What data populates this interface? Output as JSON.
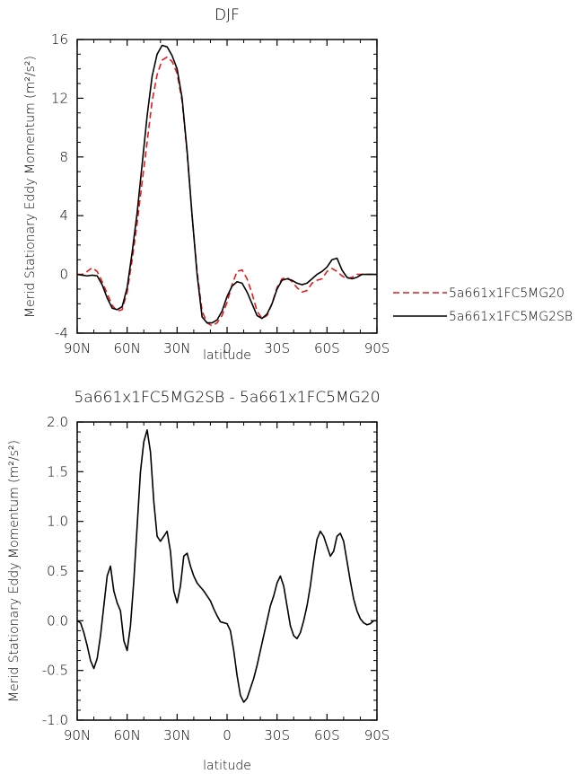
{
  "chart_data": [
    {
      "type": "line",
      "title": "DJF",
      "xlabel": "latitude",
      "ylabel": "Merid Stationary Eddy Momentum (m²/s²)",
      "xlim": [
        90,
        -90
      ],
      "ylim": [
        -4,
        16
      ],
      "x_ticks": [
        90,
        60,
        30,
        0,
        -30,
        -60,
        -90
      ],
      "x_tick_labels": [
        "90N",
        "60N",
        "30N",
        "0",
        "30S",
        "60S",
        "90S"
      ],
      "y_ticks": [
        -4,
        0,
        4,
        8,
        12,
        16
      ],
      "y_tick_labels": [
        "-4",
        "0",
        "4",
        "8",
        "12",
        "16"
      ],
      "legend_position": "right",
      "series": [
        {
          "name": "5a661x1FC5MG20",
          "color": "#e41a1c",
          "dash": "dashed",
          "x": [
            90,
            87,
            84,
            81,
            78,
            75,
            72,
            69,
            66,
            63,
            60,
            57,
            54,
            51,
            48,
            45,
            42,
            39,
            36,
            33,
            30,
            27,
            24,
            21,
            18,
            15,
            12,
            9,
            6,
            3,
            0,
            -3,
            -6,
            -9,
            -12,
            -15,
            -18,
            -21,
            -24,
            -27,
            -30,
            -33,
            -36,
            -39,
            -42,
            -45,
            -48,
            -51,
            -54,
            -57,
            -60,
            -63,
            -66,
            -69,
            -72,
            -75,
            -78,
            -81,
            -84,
            -87,
            -90
          ],
          "values": [
            0.0,
            0.0,
            0.2,
            0.45,
            0.2,
            -0.5,
            -1.3,
            -2.1,
            -2.5,
            -2.4,
            -1.2,
            1.0,
            3.5,
            6.3,
            9.0,
            11.8,
            13.6,
            14.6,
            14.8,
            14.5,
            13.7,
            11.8,
            8.3,
            4.0,
            0.2,
            -2.5,
            -3.3,
            -3.5,
            -3.3,
            -2.8,
            -1.9,
            -0.7,
            0.2,
            0.3,
            -0.3,
            -1.3,
            -2.5,
            -3.0,
            -2.8,
            -2.0,
            -0.9,
            -0.3,
            -0.2,
            -0.5,
            -0.9,
            -1.2,
            -1.1,
            -0.6,
            -0.4,
            -0.3,
            0.2,
            0.4,
            0.2,
            -0.1,
            -0.3,
            -0.2,
            0.0,
            0.0,
            0.0,
            0.0,
            0.0
          ]
        },
        {
          "name": "5a661x1FC5MG2SB",
          "color": "#000000",
          "dash": "solid",
          "x": [
            90,
            87,
            84,
            81,
            78,
            75,
            72,
            69,
            66,
            63,
            60,
            57,
            54,
            51,
            48,
            45,
            42,
            39,
            36,
            33,
            30,
            27,
            24,
            21,
            18,
            15,
            12,
            9,
            6,
            3,
            0,
            -3,
            -6,
            -9,
            -12,
            -15,
            -18,
            -21,
            -24,
            -27,
            -30,
            -33,
            -36,
            -39,
            -42,
            -45,
            -48,
            -51,
            -54,
            -57,
            -60,
            -63,
            -66,
            -69,
            -72,
            -75,
            -78,
            -81,
            -84,
            -87,
            -90
          ],
          "values": [
            0.0,
            -0.05,
            -0.1,
            -0.05,
            -0.1,
            -0.7,
            -1.6,
            -2.3,
            -2.4,
            -2.2,
            -0.9,
            1.5,
            4.2,
            7.5,
            10.8,
            13.5,
            15.0,
            15.6,
            15.5,
            14.9,
            14.0,
            12.0,
            8.4,
            4.0,
            0.0,
            -2.9,
            -3.3,
            -3.3,
            -3.1,
            -2.5,
            -1.5,
            -0.8,
            -0.5,
            -0.6,
            -1.2,
            -2.0,
            -2.8,
            -3.0,
            -2.7,
            -2.0,
            -1.0,
            -0.4,
            -0.3,
            -0.4,
            -0.6,
            -0.7,
            -0.6,
            -0.3,
            0.0,
            0.2,
            0.5,
            1.0,
            1.1,
            0.3,
            -0.2,
            -0.3,
            -0.2,
            0.0,
            0.0,
            0.0,
            0.0
          ]
        }
      ]
    },
    {
      "type": "line",
      "title": "5a661x1FC5MG2SB - 5a661x1FC5MG20",
      "xlabel": "latitude",
      "ylabel": "Merid Stationary Eddy Momentum (m²/s²)",
      "xlim": [
        90,
        -90
      ],
      "ylim": [
        -1.0,
        2.0
      ],
      "x_ticks": [
        90,
        60,
        30,
        0,
        -30,
        -60,
        -90
      ],
      "x_tick_labels": [
        "90N",
        "60N",
        "30N",
        "0",
        "30S",
        "60S",
        "90S"
      ],
      "y_ticks": [
        -1.0,
        -0.5,
        0.0,
        0.5,
        1.0,
        1.5,
        2.0
      ],
      "y_tick_labels": [
        "-1.0",
        "-0.5",
        "0.0",
        "0.5",
        "1.0",
        "1.5",
        "2.0"
      ],
      "series": [
        {
          "color": "#000000",
          "dash": "solid",
          "x": [
            90,
            88,
            86,
            84,
            82,
            80,
            78,
            76,
            74,
            72,
            70,
            68,
            66,
            64,
            62,
            60,
            58,
            56,
            54,
            52,
            50,
            48,
            46,
            44,
            42,
            40,
            38,
            36,
            34,
            32,
            30,
            28,
            26,
            24,
            22,
            20,
            18,
            16,
            14,
            12,
            10,
            8,
            6,
            4,
            2,
            0,
            -2,
            -4,
            -6,
            -8,
            -10,
            -12,
            -14,
            -16,
            -18,
            -20,
            -22,
            -24,
            -26,
            -28,
            -30,
            -32,
            -34,
            -36,
            -38,
            -40,
            -42,
            -44,
            -46,
            -48,
            -50,
            -52,
            -54,
            -56,
            -58,
            -60,
            -62,
            -64,
            -66,
            -68,
            -70,
            -72,
            -74,
            -76,
            -78,
            -80,
            -82,
            -84,
            -86,
            -88,
            -90
          ],
          "values": [
            0.0,
            -0.02,
            -0.12,
            -0.25,
            -0.4,
            -0.48,
            -0.38,
            -0.15,
            0.15,
            0.45,
            0.55,
            0.3,
            0.18,
            0.1,
            -0.2,
            -0.3,
            -0.05,
            0.4,
            0.95,
            1.5,
            1.8,
            1.92,
            1.7,
            1.2,
            0.85,
            0.8,
            0.85,
            0.9,
            0.7,
            0.3,
            0.18,
            0.35,
            0.65,
            0.68,
            0.55,
            0.45,
            0.38,
            0.34,
            0.3,
            0.25,
            0.2,
            0.12,
            0.05,
            -0.01,
            -0.02,
            -0.03,
            -0.1,
            -0.3,
            -0.55,
            -0.75,
            -0.82,
            -0.78,
            -0.68,
            -0.58,
            -0.45,
            -0.3,
            -0.15,
            0.0,
            0.15,
            0.25,
            0.38,
            0.45,
            0.35,
            0.15,
            -0.05,
            -0.15,
            -0.18,
            -0.12,
            0.0,
            0.15,
            0.35,
            0.6,
            0.82,
            0.9,
            0.85,
            0.75,
            0.65,
            0.7,
            0.85,
            0.88,
            0.8,
            0.6,
            0.4,
            0.22,
            0.1,
            0.02,
            -0.02,
            -0.04,
            -0.03,
            0.0,
            0.0
          ]
        }
      ]
    }
  ]
}
